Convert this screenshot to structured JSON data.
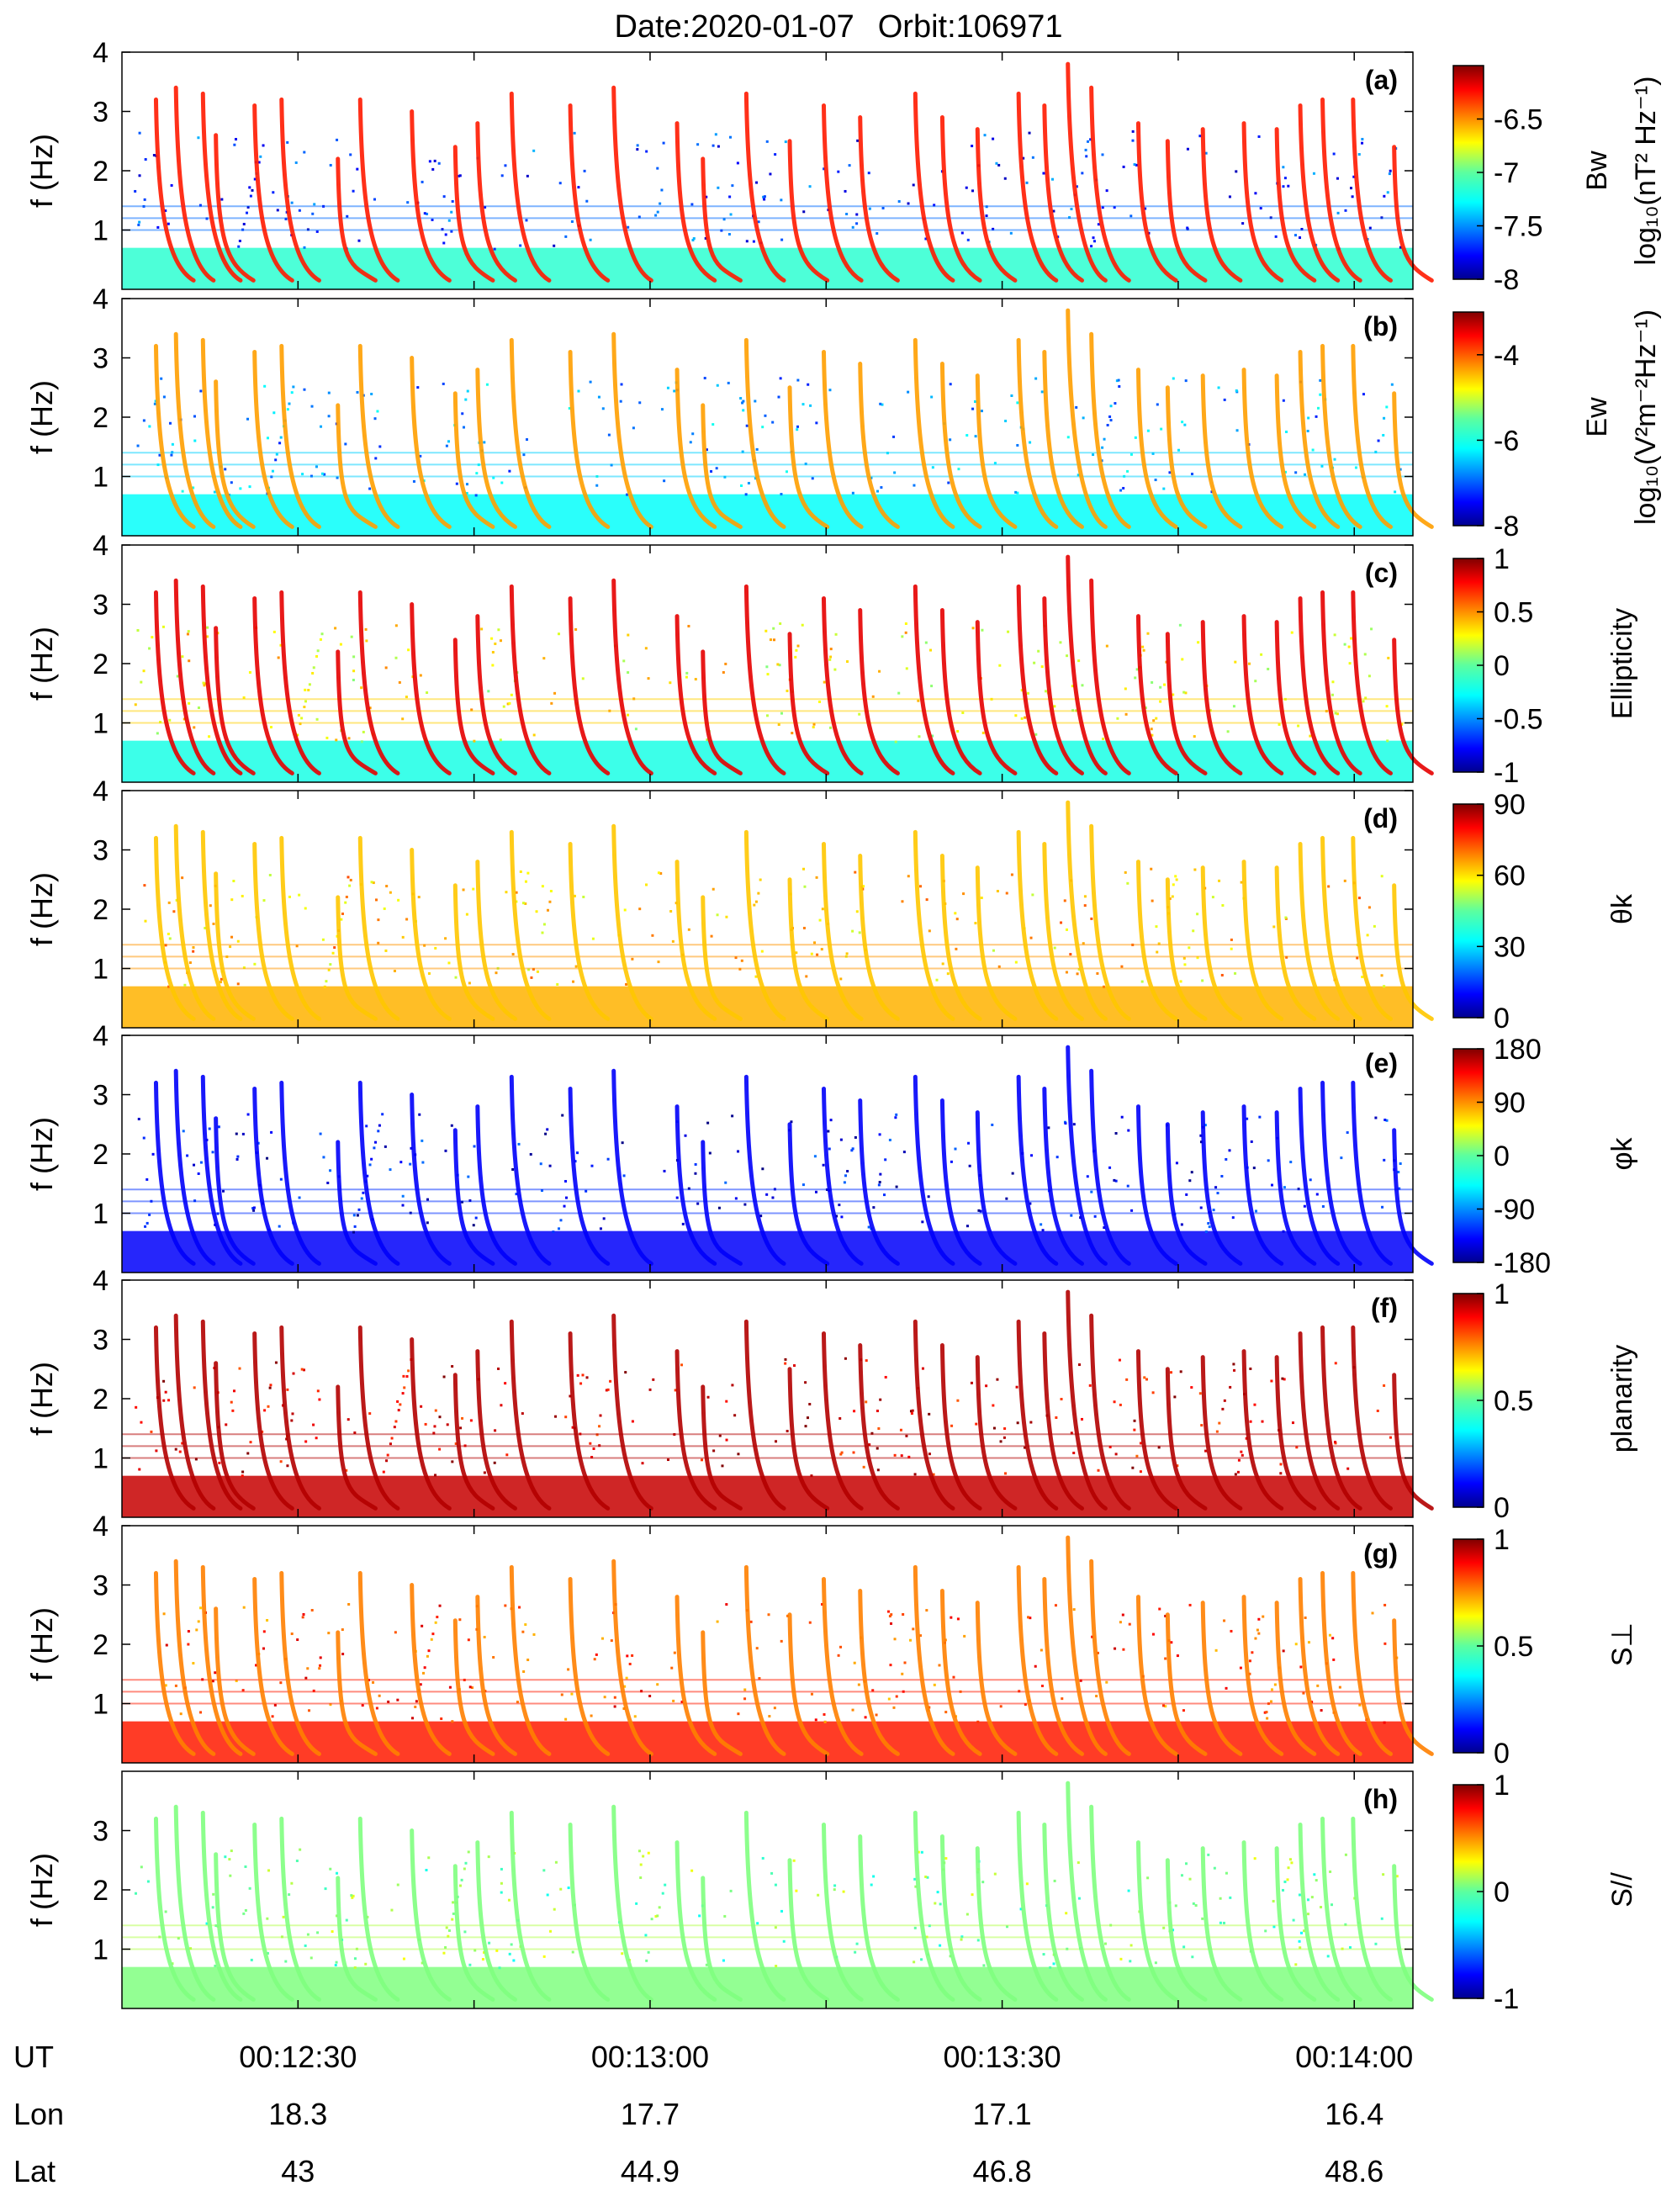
{
  "title": {
    "date": "Date:2020-01-07",
    "orbit": "Orbit:106971"
  },
  "chart_data": {
    "type": "heatmap",
    "x_label_rows": [
      {
        "label": "UT",
        "values": [
          "00:12:30",
          "00:13:00",
          "00:13:30",
          "00:14:00"
        ]
      },
      {
        "label": "Lon",
        "values": [
          "18.3",
          "17.7",
          "17.1",
          "16.4"
        ]
      },
      {
        "label": "Lat",
        "values": [
          "43",
          "44.9",
          "46.8",
          "48.6"
        ]
      }
    ],
    "xlim_seconds": [
      -15,
      95
    ],
    "major_tick_seconds": [
      0,
      30,
      60,
      90
    ],
    "minor_tick_seconds": [
      15,
      45,
      75
    ],
    "ylabel": "f (Hz)",
    "ylim": [
      0,
      4
    ],
    "yticks": [
      "1",
      "2",
      "3",
      "4"
    ],
    "emission_events": [
      {
        "t": -12.1,
        "top": 3.2
      },
      {
        "t": -10.4,
        "top": 3.4
      },
      {
        "t": -8.1,
        "top": 3.3
      },
      {
        "t": -7,
        "top": 2.6
      },
      {
        "t": -3.7,
        "top": 3.1
      },
      {
        "t": -1.4,
        "top": 3.2
      },
      {
        "t": 3.4,
        "top": 2.2
      },
      {
        "t": 5.3,
        "top": 3.2
      },
      {
        "t": 9.7,
        "top": 3
      },
      {
        "t": 13.4,
        "top": 2.4
      },
      {
        "t": 15.3,
        "top": 2.8
      },
      {
        "t": 18.2,
        "top": 3.3
      },
      {
        "t": 23.2,
        "top": 3.1
      },
      {
        "t": 26.9,
        "top": 3.4
      },
      {
        "t": 32.3,
        "top": 2.8
      },
      {
        "t": 34.5,
        "top": 2.2
      },
      {
        "t": 38.2,
        "top": 3.3
      },
      {
        "t": 41.9,
        "top": 2.5
      },
      {
        "t": 44.8,
        "top": 3.1
      },
      {
        "t": 47.9,
        "top": 2.9
      },
      {
        "t": 52.6,
        "top": 3.3
      },
      {
        "t": 54.9,
        "top": 2.9
      },
      {
        "t": 57.9,
        "top": 2.7
      },
      {
        "t": 61.4,
        "top": 3.3
      },
      {
        "t": 63.6,
        "top": 3.1
      },
      {
        "t": 65.6,
        "top": 3.8
      },
      {
        "t": 67.6,
        "top": 3.4
      },
      {
        "t": 71.6,
        "top": 2.8
      },
      {
        "t": 74.1,
        "top": 2.5
      },
      {
        "t": 77.1,
        "top": 2.7
      },
      {
        "t": 80.6,
        "top": 2.8
      },
      {
        "t": 83.4,
        "top": 2.7
      },
      {
        "t": 85.4,
        "top": 3.1
      },
      {
        "t": 87.3,
        "top": 3.2
      },
      {
        "t": 89.9,
        "top": 3.2
      },
      {
        "t": 93.4,
        "top": 2.4
      }
    ],
    "panels": [
      {
        "tag": "(a)",
        "quantity": "Bw",
        "unit": "log₁₀(nT² Hz⁻¹)",
        "colormap": "jet",
        "clim": [
          -8,
          -6
        ],
        "ticks": [
          "-6.5",
          "-7",
          "-7.5",
          "-8"
        ],
        "tick_values": [
          -6.5,
          -7,
          -7.5,
          -8
        ],
        "background_level": 0.18,
        "lowband_level": 0.42,
        "burst_level": 0.85
      },
      {
        "tag": "(b)",
        "quantity": "Ew",
        "unit": "log₁₀(V²m⁻²Hz⁻¹)",
        "colormap": "jet",
        "clim": [
          -8,
          -3
        ],
        "ticks": [
          "-4",
          "-6",
          "-8"
        ],
        "tick_values": [
          -4,
          -6,
          -8
        ],
        "background_level": 0.28,
        "lowband_level": 0.38,
        "burst_level": 0.72
      },
      {
        "tag": "(c)",
        "quantity": "Ellipticity",
        "unit": "",
        "colormap": "jet",
        "clim": [
          -1,
          1
        ],
        "ticks": [
          "1",
          "0.5",
          "0",
          "-0.5",
          "-1"
        ],
        "tick_values": [
          1,
          0.5,
          0,
          -0.5,
          -1
        ],
        "background_level": 0.62,
        "lowband_level": 0.4,
        "burst_level": 0.9
      },
      {
        "tag": "(d)",
        "quantity": "θk",
        "unit": "",
        "colormap": "jet",
        "clim": [
          0,
          90
        ],
        "ticks": [
          "90",
          "60",
          "30",
          "0"
        ],
        "tick_values": [
          90,
          60,
          30,
          0
        ],
        "background_level": 0.68,
        "lowband_level": 0.7,
        "burst_level": 0.68
      },
      {
        "tag": "(e)",
        "quantity": "φk",
        "unit": "",
        "colormap": "jet",
        "clim": [
          -180,
          180
        ],
        "ticks": [
          "180",
          "90",
          "0",
          "-90",
          "-180"
        ],
        "tick_values": [
          180,
          90,
          0,
          -90,
          -180
        ],
        "background_level": 0.12,
        "lowband_level": 0.12,
        "burst_level": 0.12
      },
      {
        "tag": "(f)",
        "quantity": "planarity",
        "unit": "",
        "colormap": "jet",
        "clim": [
          0,
          1
        ],
        "ticks": [
          "1",
          "0.5",
          "0"
        ],
        "tick_values": [
          1,
          0.5,
          0
        ],
        "background_level": 0.9,
        "lowband_level": 0.93,
        "burst_level": 0.95
      },
      {
        "tag": "(g)",
        "quantity": "S⊥",
        "unit": "",
        "colormap": "jet",
        "clim": [
          0,
          1
        ],
        "ticks": [
          "1",
          "0.5",
          "0"
        ],
        "tick_values": [
          1,
          0.5,
          0
        ],
        "background_level": 0.8,
        "lowband_level": 0.85,
        "burst_level": 0.75
      },
      {
        "tag": "(h)",
        "quantity": "S//",
        "unit": "",
        "colormap": "jet",
        "clim": [
          -1,
          1
        ],
        "ticks": [
          "1",
          "0",
          "-1"
        ],
        "tick_values": [
          1,
          0,
          -1
        ],
        "background_level": 0.5,
        "lowband_level": 0.5,
        "burst_level": 0.5
      }
    ]
  }
}
